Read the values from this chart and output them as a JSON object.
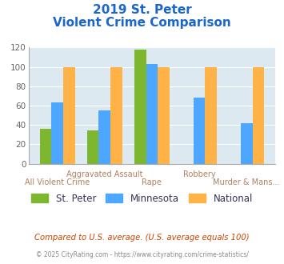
{
  "title_line1": "2019 St. Peter",
  "title_line2": "Violent Crime Comparison",
  "categories": [
    "All Violent Crime",
    "Aggravated Assault",
    "Rape",
    "Robbery",
    "Murder & Mans..."
  ],
  "xlabels_row1": [
    "",
    "Aggravated Assault",
    "",
    "Robbery",
    ""
  ],
  "xlabels_row2": [
    "All Violent Crime",
    "",
    "Rape",
    "",
    "Murder & Mans..."
  ],
  "st_peter": [
    36,
    34,
    118,
    0,
    0
  ],
  "minnesota": [
    63,
    55,
    103,
    68,
    42
  ],
  "national": [
    100,
    100,
    100,
    100,
    100
  ],
  "color_st_peter": "#7db72f",
  "color_minnesota": "#4da6ff",
  "color_national": "#ffb347",
  "bg_color": "#dce9f0",
  "title_color": "#1a66cc",
  "xlabel_color": "#b08060",
  "legend_label_color": "#333355",
  "footer1": "Compared to U.S. average. (U.S. average equals 100)",
  "footer2": "© 2025 CityRating.com - https://www.cityrating.com/crime-statistics/",
  "footer1_color": "#cc4400",
  "footer2_color": "#888888",
  "ylim": [
    0,
    120
  ],
  "yticks": [
    0,
    20,
    40,
    60,
    80,
    100,
    120
  ]
}
